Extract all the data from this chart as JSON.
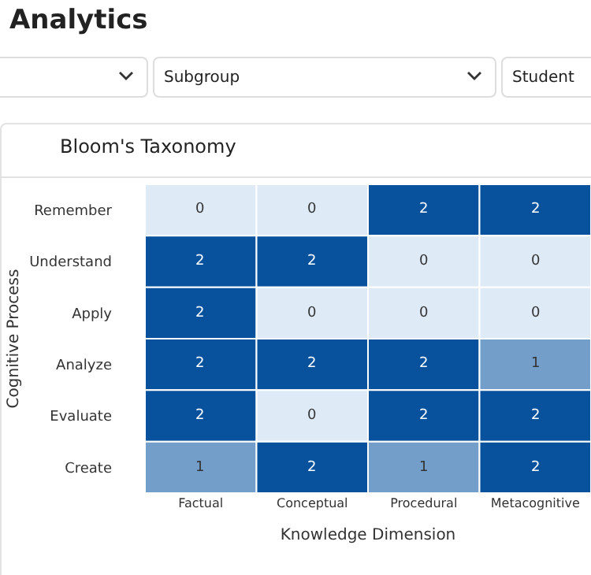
{
  "chart_data": [
    {
      "type": "other",
      "title": "Analytics",
      "annotations": [
        "Subgroup",
        "Student"
      ]
    },
    {
      "type": "heatmap",
      "title": "Bloom's Taxonomy",
      "xlabel": "Knowledge Dimension",
      "ylabel": "Cognitive Process",
      "categories": [
        "Factual",
        "Conceptual",
        "Procedural",
        "Metacognitive"
      ],
      "y_categories": [
        "Remember",
        "Understand",
        "Apply",
        "Analyze",
        "Evaluate",
        "Create"
      ],
      "cells": [
        [
          0,
          0,
          2,
          2
        ],
        [
          2,
          2,
          0,
          0
        ],
        [
          2,
          0,
          0,
          0
        ],
        [
          2,
          2,
          2,
          1
        ],
        [
          2,
          0,
          2,
          2
        ],
        [
          1,
          2,
          1,
          2
        ]
      ],
      "data_labels": true
    }
  ]
}
